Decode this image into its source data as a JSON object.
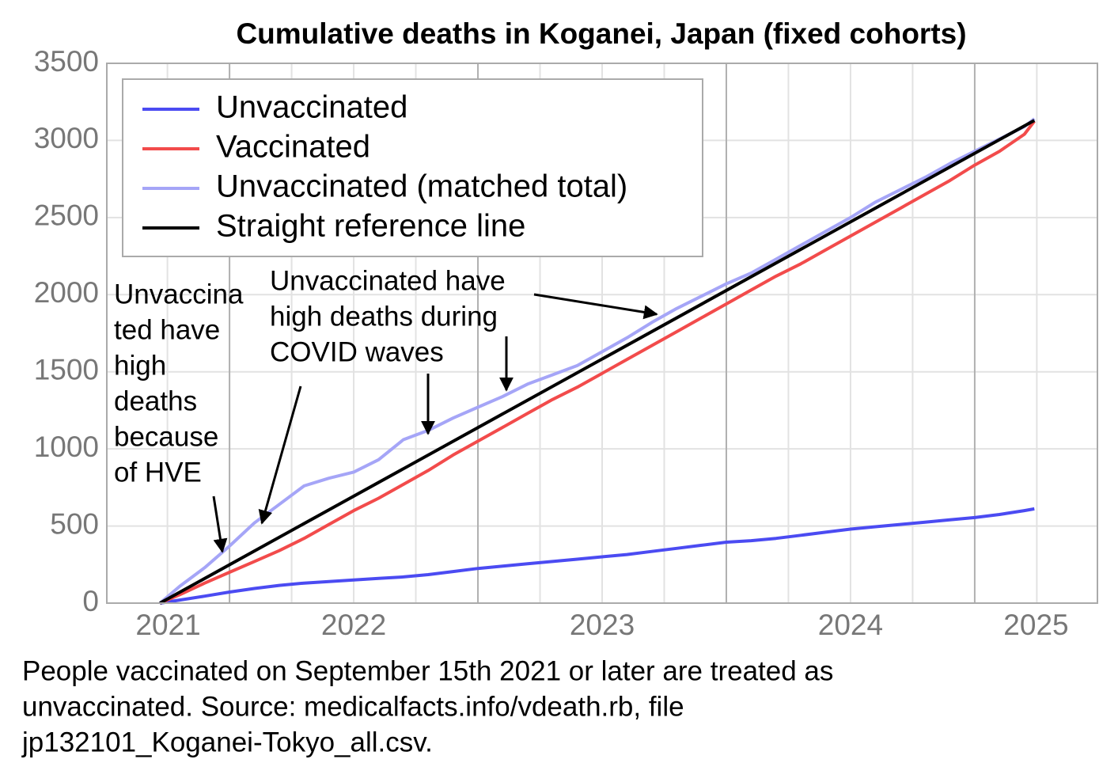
{
  "chart_data": {
    "type": "line",
    "title": "Cumulative deaths in Koganei, Japan (fixed cohorts)",
    "x": [
      2021.72,
      2021.8,
      2021.9,
      2022.0,
      2022.1,
      2022.2,
      2022.3,
      2022.4,
      2022.5,
      2022.6,
      2022.7,
      2022.8,
      2022.9,
      2023.0,
      2023.1,
      2023.2,
      2023.3,
      2023.4,
      2023.5,
      2023.6,
      2023.7,
      2023.8,
      2023.9,
      2024.0,
      2024.1,
      2024.2,
      2024.3,
      2024.4,
      2024.5,
      2024.6,
      2024.7,
      2024.8,
      2024.9,
      2025.0,
      2025.1,
      2025.2,
      2025.24
    ],
    "series": [
      {
        "name": "Unvaccinated",
        "color": "#4b4bf2",
        "values": [
          0,
          20,
          45,
          72,
          95,
          115,
          130,
          140,
          150,
          160,
          170,
          185,
          205,
          225,
          240,
          255,
          270,
          285,
          300,
          315,
          335,
          355,
          375,
          395,
          405,
          420,
          440,
          460,
          480,
          495,
          510,
          525,
          540,
          555,
          575,
          600,
          611
        ]
      },
      {
        "name": "Vaccinated",
        "color": "#f24b4b",
        "values": [
          0,
          55,
          130,
          200,
          270,
          340,
          420,
          510,
          600,
          680,
          770,
          860,
          960,
          1050,
          1140,
          1230,
          1320,
          1400,
          1490,
          1580,
          1670,
          1760,
          1850,
          1940,
          2030,
          2120,
          2200,
          2290,
          2380,
          2470,
          2560,
          2650,
          2740,
          2840,
          2930,
          3040,
          3125
        ]
      },
      {
        "name": "Unvaccinated (matched total)",
        "color": "#a5a5f7",
        "values": [
          0,
          110,
          230,
          370,
          520,
          640,
          760,
          810,
          850,
          930,
          1060,
          1120,
          1200,
          1270,
          1340,
          1420,
          1480,
          1540,
          1630,
          1720,
          1820,
          1910,
          1990,
          2070,
          2140,
          2230,
          2320,
          2410,
          2500,
          2600,
          2680,
          2760,
          2850,
          2930,
          3010,
          3090,
          3140
        ]
      },
      {
        "name": "Straight reference line",
        "color": "#000000",
        "x": [
          2021.72,
          2025.24
        ],
        "values": [
          0,
          3130
        ]
      }
    ],
    "xlim": [
      2021.506,
      2025.494
    ],
    "xticks": [
      2022,
      2023,
      2024,
      2025
    ],
    "xminorticks": [
      2021.75,
      2022.25,
      2022.5,
      2022.75,
      2023.25,
      2023.5,
      2023.75,
      2024.25,
      2024.5,
      2024.75,
      2025.25
    ],
    "year_labels": [
      "2021",
      "2022",
      "2023",
      "2024",
      "2025"
    ],
    "ylim": [
      0,
      3500
    ],
    "yticks": [
      0,
      500,
      1000,
      1500,
      2000,
      2500,
      3000,
      3500
    ],
    "grid": true,
    "legend": "top-left",
    "annotations": [
      {
        "lines": [
          "Unvaccina",
          "ted have",
          "high",
          "deaths",
          "because",
          "of HVE"
        ]
      },
      {
        "lines": [
          "Unvaccinated have",
          "high deaths during",
          "COVID waves"
        ]
      }
    ],
    "caption": [
      "People vaccinated on September 15th 2021 or later are treated as",
      "unvaccinated. Source: medicalfacts.info/vdeath.rb, file",
      "jp132101_Koganei-Tokyo_all.csv."
    ]
  }
}
